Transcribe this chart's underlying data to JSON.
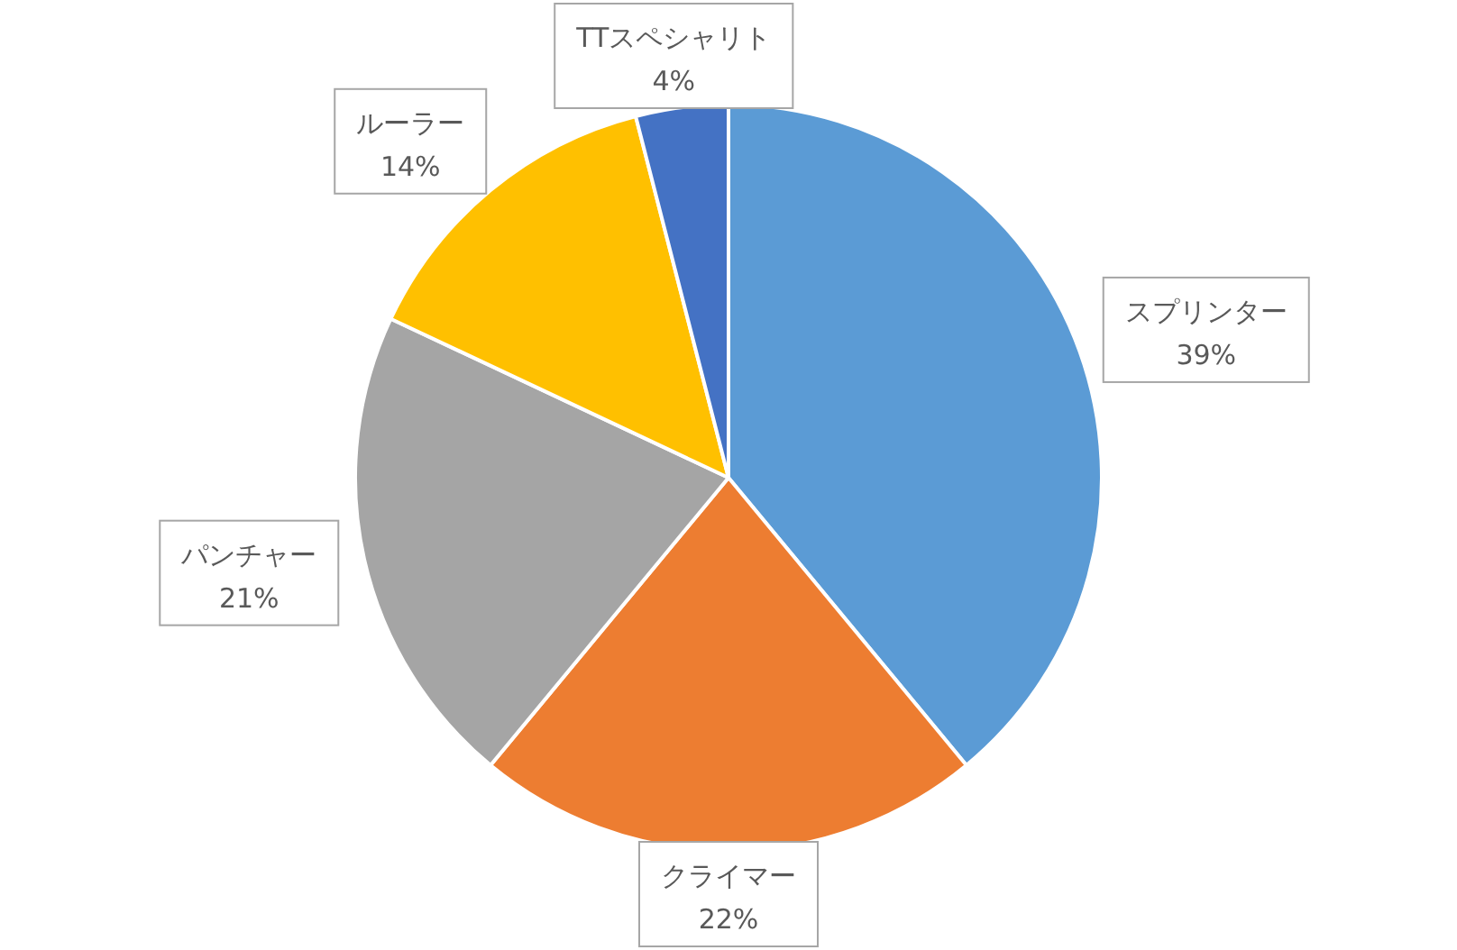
{
  "chart_data": {
    "type": "pie",
    "categories": [
      "スプリンター",
      "クライマー",
      "パンチャー",
      "ルーラー",
      "TTスペシャリト"
    ],
    "values": [
      39,
      22,
      21,
      14,
      4
    ],
    "value_labels": [
      "39%",
      "22%",
      "21%",
      "14%",
      "4%"
    ],
    "colors": [
      "#5b9bd5",
      "#ed7d31",
      "#a5a5a5",
      "#ffc000",
      "#4472c4"
    ]
  }
}
